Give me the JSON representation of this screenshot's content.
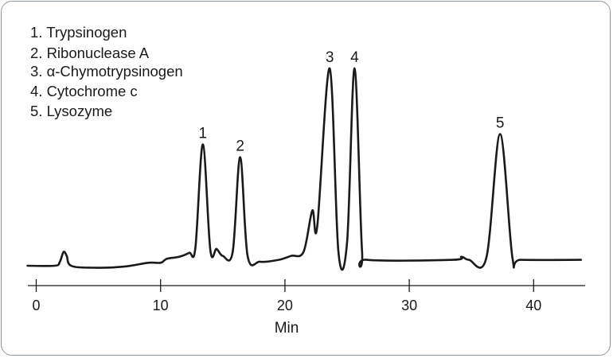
{
  "chart_data": {
    "type": "line",
    "title": "",
    "xlabel": "Min",
    "ylabel": "",
    "xlim": [
      0,
      44
    ],
    "x_ticks": [
      0,
      10,
      20,
      30,
      40
    ],
    "grid": false,
    "legend_position": "top-left",
    "legend": [
      "1. Trypsinogen",
      "2. Ribonuclease A",
      "3. α-Chymotrypsinogen",
      "4. Cytochrome c",
      "5. Lysozyme"
    ],
    "peaks": [
      {
        "label": "1",
        "compound": "Trypsinogen",
        "retention_time": 13.4,
        "relative_height": 0.615
      },
      {
        "label": "2",
        "compound": "Ribonuclease A",
        "retention_time": 16.4,
        "relative_height": 0.55
      },
      {
        "label": "3",
        "compound": "α-Chymotrypsinogen",
        "retention_time": 23.6,
        "relative_height": 1.0
      },
      {
        "label": "4",
        "compound": "Cytochrome c",
        "retention_time": 25.6,
        "relative_height": 1.0
      },
      {
        "label": "5",
        "compound": "Lysozyme",
        "retention_time": 37.3,
        "relative_height": 0.667
      }
    ],
    "series": [
      {
        "color": "#1a1a1a",
        "points": [
          [
            -0.7,
            0.0
          ],
          [
            1.5,
            0.0
          ],
          [
            1.9,
            0.02
          ],
          [
            2.2,
            0.07
          ],
          [
            2.45,
            0.05
          ],
          [
            2.8,
            0.0
          ],
          [
            4.5,
            -0.01
          ],
          [
            7.0,
            -0.005
          ],
          [
            9.0,
            0.015
          ],
          [
            10.0,
            0.015
          ],
          [
            10.5,
            0.035
          ],
          [
            11.5,
            0.045
          ],
          [
            12.3,
            0.065
          ],
          [
            12.8,
            0.09
          ],
          [
            13.4,
            0.615
          ],
          [
            14.0,
            0.08
          ],
          [
            14.5,
            0.085
          ],
          [
            15.0,
            0.05
          ],
          [
            15.8,
            0.07
          ],
          [
            16.4,
            0.55
          ],
          [
            17.0,
            0.05
          ],
          [
            18.0,
            0.02
          ],
          [
            19.5,
            0.03
          ],
          [
            20.5,
            0.05
          ],
          [
            21.5,
            0.07
          ],
          [
            22.2,
            0.28
          ],
          [
            22.6,
            0.2
          ],
          [
            23.6,
            1.0
          ],
          [
            24.3,
            0.07
          ],
          [
            25.0,
            0.12
          ],
          [
            25.6,
            1.0
          ],
          [
            26.2,
            0.08
          ],
          [
            26.6,
            0.03
          ],
          [
            33.5,
            0.03
          ],
          [
            34.2,
            0.045
          ],
          [
            34.8,
            0.03
          ],
          [
            36.2,
            0.04
          ],
          [
            37.3,
            0.667
          ],
          [
            38.3,
            0.04
          ],
          [
            39.0,
            0.03
          ],
          [
            43.8,
            0.03
          ]
        ]
      }
    ]
  }
}
